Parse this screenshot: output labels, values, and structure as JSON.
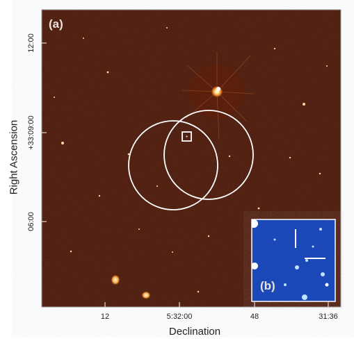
{
  "figure": {
    "panel_label_main": "(a)",
    "panel_label_inset": "(b)",
    "xlabel": "Declination",
    "ylabel": "Right Ascension",
    "x_ticks": [
      "12",
      "5:32:00",
      "48",
      "31:36"
    ],
    "y_ticks": [
      "12:00",
      "+33:09:00",
      "06:00"
    ],
    "colors": {
      "main_background": "#4a1606",
      "inset_background": "#0f3fb8",
      "annotation": "#ffffff",
      "frame": "#9a9a9a"
    }
  }
}
